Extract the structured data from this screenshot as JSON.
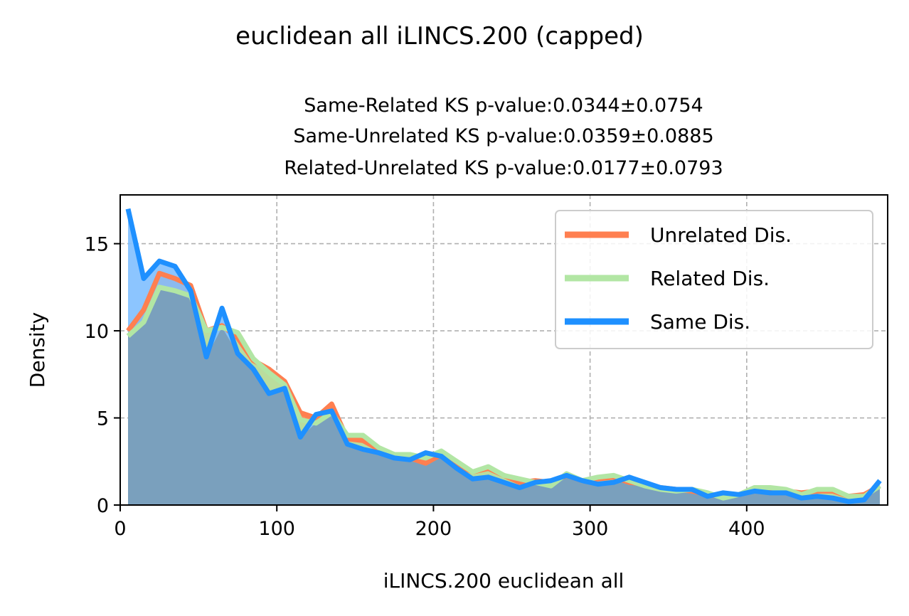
{
  "chart_data": {
    "type": "area",
    "title": "euclidean all iLINCS.200 (capped)",
    "subtitle_lines": [
      "Same-Related KS p-value:0.0344±0.0754",
      "Same-Unrelated KS p-value:0.0359±0.0885",
      "Related-Unrelated KS p-value:0.0177±0.0793"
    ],
    "xlabel": "iLINCS.200 euclidean all",
    "ylabel": "Density",
    "xlim": [
      0,
      490
    ],
    "ylim": [
      0,
      17.8
    ],
    "xticks": [
      0,
      100,
      200,
      300,
      400
    ],
    "yticks": [
      0,
      5,
      10,
      15
    ],
    "grid": true,
    "legend_position": "upper right",
    "x": [
      5,
      15,
      25,
      35,
      45,
      55,
      65,
      75,
      85,
      95,
      105,
      115,
      125,
      135,
      145,
      155,
      165,
      175,
      185,
      195,
      205,
      215,
      225,
      235,
      245,
      255,
      265,
      275,
      285,
      295,
      305,
      315,
      325,
      335,
      345,
      355,
      365,
      375,
      385,
      395,
      405,
      415,
      425,
      435,
      445,
      455,
      465,
      475,
      485
    ],
    "series": [
      {
        "name": "Unrelated Dis.",
        "color": "#ff7f50",
        "fill": "#ff7f50",
        "values": [
          10.0,
          11.2,
          13.3,
          13.0,
          12.6,
          10.0,
          10.3,
          9.6,
          8.3,
          7.8,
          7.1,
          5.3,
          5.0,
          5.8,
          3.8,
          3.7,
          3.2,
          2.9,
          2.7,
          2.4,
          2.9,
          2.3,
          1.9,
          2.1,
          1.7,
          1.3,
          1.4,
          1.3,
          1.7,
          1.4,
          1.5,
          1.6,
          1.3,
          1.2,
          1.0,
          0.9,
          0.8,
          0.6,
          0.5,
          0.6,
          0.9,
          0.9,
          0.8,
          0.7,
          0.8,
          0.8,
          0.5,
          0.6,
          1.1
        ]
      },
      {
        "name": "Related Dis.",
        "color": "#b2e6a4",
        "fill": "#b2e6a4",
        "values": [
          9.7,
          10.5,
          12.5,
          12.3,
          12.0,
          10.0,
          10.2,
          9.9,
          8.4,
          7.6,
          6.9,
          4.9,
          4.7,
          5.3,
          4.0,
          4.0,
          3.3,
          2.9,
          2.9,
          2.7,
          3.1,
          2.5,
          1.9,
          2.2,
          1.7,
          1.5,
          1.3,
          1.1,
          1.8,
          1.4,
          1.6,
          1.7,
          1.4,
          1.1,
          0.9,
          0.8,
          0.9,
          0.7,
          0.4,
          0.6,
          1.0,
          1.0,
          0.9,
          0.6,
          0.9,
          0.9,
          0.5,
          0.5,
          1.1
        ]
      },
      {
        "name": "Same Dis.",
        "color": "#1e90ff",
        "fill": "#80bfff",
        "values": [
          17.0,
          13.0,
          14.0,
          13.7,
          12.3,
          8.5,
          11.3,
          8.7,
          7.8,
          6.4,
          6.7,
          3.9,
          5.2,
          5.4,
          3.5,
          3.2,
          3.0,
          2.7,
          2.6,
          3.0,
          2.8,
          2.1,
          1.5,
          1.6,
          1.3,
          1.0,
          1.3,
          1.4,
          1.7,
          1.4,
          1.2,
          1.3,
          1.6,
          1.3,
          1.0,
          0.9,
          0.9,
          0.5,
          0.7,
          0.6,
          0.8,
          0.7,
          0.7,
          0.4,
          0.5,
          0.4,
          0.2,
          0.3,
          1.4
        ]
      }
    ]
  }
}
